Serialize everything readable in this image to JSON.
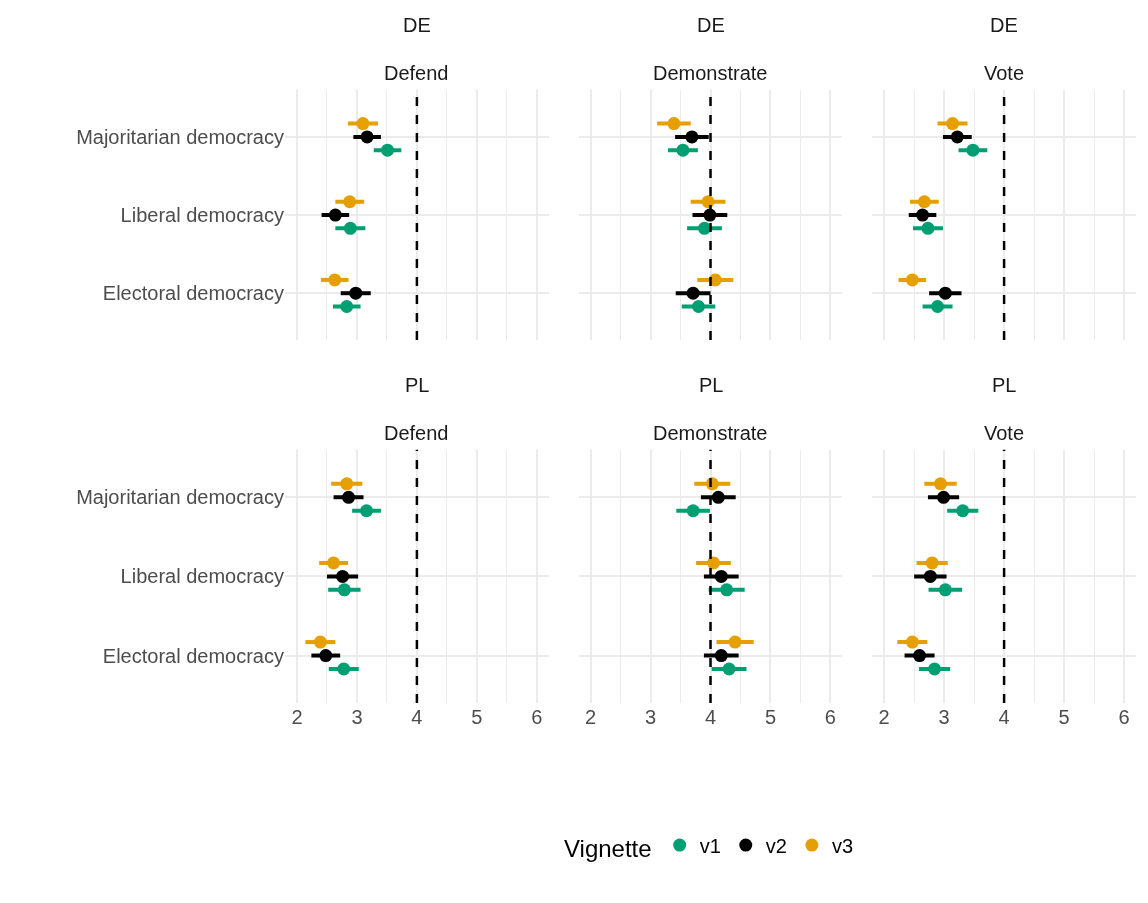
{
  "chart_data": [
    {
      "type": "scatter",
      "title": "DE",
      "subtitle": "Defend",
      "orientation": "horizontal",
      "categories": [
        "Majoritarian democracy",
        "Liberal democracy",
        "Electoral democracy"
      ],
      "xlim": [
        1.8,
        6.2
      ],
      "xticks": [
        2,
        3,
        4,
        5,
        6
      ],
      "tick_labels": "y",
      "grid": true,
      "marker": "circle",
      "legend": "bottom",
      "legend_title": "Vignette",
      "ref_lines": [
        {
          "axis": "x",
          "value": 4,
          "color": "#000000",
          "line_style": "dashed"
        }
      ],
      "series": [
        {
          "name": "v1",
          "color": "#009e73",
          "values": [
            3.51,
            2.89,
            2.83
          ],
          "errors": [
            0.23,
            0.25,
            0.23
          ]
        },
        {
          "name": "v2",
          "color": "#000000",
          "values": [
            3.17,
            2.64,
            2.98
          ],
          "errors": [
            0.23,
            0.23,
            0.25
          ]
        },
        {
          "name": "v3",
          "color": "#e69f00",
          "values": [
            3.1,
            2.88,
            2.63
          ],
          "errors": [
            0.25,
            0.24,
            0.23
          ]
        }
      ]
    },
    {
      "type": "scatter",
      "title": "DE",
      "subtitle": "Demonstrate",
      "orientation": "horizontal",
      "categories": [
        null,
        null,
        null
      ],
      "xlim": [
        1.8,
        6.2
      ],
      "xticks": [
        2,
        3,
        4,
        5,
        6
      ],
      "tick_labels": false,
      "grid": true,
      "marker": "circle",
      "ref_lines": [
        {
          "axis": "x",
          "value": 4,
          "color": "#000000",
          "line_style": "dashed"
        }
      ],
      "series": [
        {
          "color": "#009e73",
          "values": [
            3.54,
            3.9,
            3.8
          ],
          "errors": [
            0.25,
            0.29,
            0.28
          ]
        },
        {
          "color": "#000000",
          "values": [
            3.69,
            3.99,
            3.71
          ],
          "errors": [
            0.28,
            0.29,
            0.29
          ]
        },
        {
          "color": "#e69f00",
          "values": [
            3.39,
            3.96,
            4.08
          ],
          "errors": [
            0.28,
            0.29,
            0.3
          ]
        }
      ]
    },
    {
      "type": "scatter",
      "title": "DE",
      "subtitle": "Vote",
      "orientation": "horizontal",
      "categories": [
        null,
        null,
        null
      ],
      "xlim": [
        1.8,
        6.2
      ],
      "xticks": [
        2,
        3,
        4,
        5,
        6
      ],
      "tick_labels": false,
      "grid": true,
      "marker": "circle",
      "ref_lines": [
        {
          "axis": "x",
          "value": 4,
          "color": "#000000",
          "line_style": "dashed"
        }
      ],
      "series": [
        {
          "color": "#009e73",
          "values": [
            3.48,
            2.73,
            2.89
          ],
          "errors": [
            0.24,
            0.25,
            0.25
          ]
        },
        {
          "color": "#000000",
          "values": [
            3.22,
            2.64,
            3.02
          ],
          "errors": [
            0.24,
            0.23,
            0.27
          ]
        },
        {
          "color": "#e69f00",
          "values": [
            3.14,
            2.67,
            2.47
          ],
          "errors": [
            0.25,
            0.24,
            0.23
          ]
        }
      ]
    },
    {
      "type": "scatter",
      "title": "PL",
      "subtitle": "Defend",
      "orientation": "horizontal",
      "categories": [
        "Majoritarian democracy",
        "Liberal democracy",
        "Electoral democracy"
      ],
      "xlim": [
        1.8,
        6.2
      ],
      "xticks": [
        2,
        3,
        4,
        5,
        6
      ],
      "grid": true,
      "marker": "circle",
      "ref_lines": [
        {
          "axis": "x",
          "value": 4,
          "color": "#000000",
          "line_style": "dashed"
        }
      ],
      "series": [
        {
          "color": "#009e73",
          "values": [
            3.16,
            2.79,
            2.78
          ],
          "errors": [
            0.24,
            0.27,
            0.25
          ]
        },
        {
          "color": "#000000",
          "values": [
            2.86,
            2.76,
            2.48
          ],
          "errors": [
            0.25,
            0.26,
            0.24
          ]
        },
        {
          "color": "#e69f00",
          "values": [
            2.83,
            2.61,
            2.39
          ],
          "errors": [
            0.26,
            0.24,
            0.25
          ]
        }
      ]
    },
    {
      "type": "scatter",
      "title": "PL",
      "subtitle": "Demonstrate",
      "orientation": "horizontal",
      "categories": [
        null,
        null,
        null
      ],
      "xlim": [
        1.8,
        6.2
      ],
      "xticks": [
        2,
        3,
        4,
        5,
        6
      ],
      "tick_labels": "x",
      "grid": true,
      "marker": "circle",
      "ref_lines": [
        {
          "axis": "x",
          "value": 4,
          "color": "#000000",
          "line_style": "dashed"
        }
      ],
      "series": [
        {
          "color": "#009e73",
          "values": [
            3.71,
            4.27,
            4.31
          ],
          "errors": [
            0.28,
            0.3,
            0.29
          ]
        },
        {
          "color": "#000000",
          "values": [
            4.13,
            4.18,
            4.18
          ],
          "errors": [
            0.29,
            0.29,
            0.29
          ]
        },
        {
          "color": "#e69f00",
          "values": [
            4.03,
            4.05,
            4.41
          ],
          "errors": [
            0.3,
            0.29,
            0.31
          ]
        }
      ]
    },
    {
      "type": "scatter",
      "title": "PL",
      "subtitle": "Vote",
      "orientation": "horizontal",
      "categories": [
        null,
        null,
        null
      ],
      "xlim": [
        1.8,
        6.2
      ],
      "xticks": [
        2,
        3,
        4,
        5,
        6
      ],
      "tick_labels": "x",
      "grid": true,
      "marker": "circle",
      "ref_lines": [
        {
          "axis": "x",
          "value": 4,
          "color": "#000000",
          "line_style": "dashed"
        }
      ],
      "series": [
        {
          "color": "#009e73",
          "values": [
            3.31,
            3.02,
            2.84
          ],
          "errors": [
            0.26,
            0.28,
            0.26
          ]
        },
        {
          "color": "#000000",
          "values": [
            2.99,
            2.77,
            2.59
          ],
          "errors": [
            0.26,
            0.27,
            0.25
          ]
        },
        {
          "color": "#e69f00",
          "values": [
            2.94,
            2.8,
            2.47
          ],
          "errors": [
            0.27,
            0.26,
            0.25
          ]
        }
      ]
    }
  ]
}
